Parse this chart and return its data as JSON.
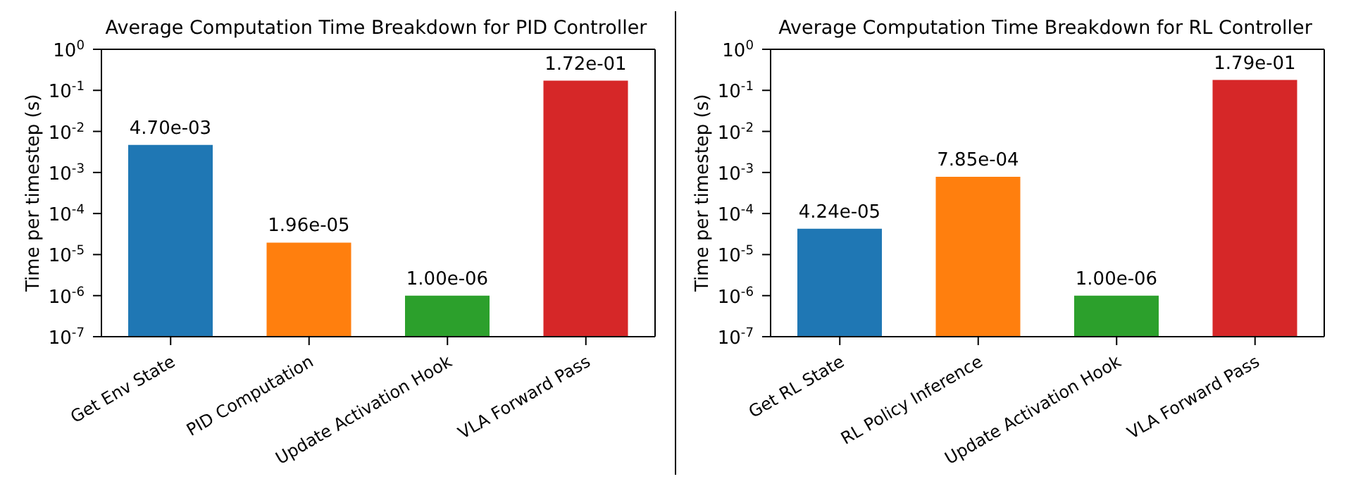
{
  "chart_data": [
    {
      "type": "bar",
      "title": "Average Computation Time Breakdown for PID Controller",
      "ylabel": "Time per timestep (s)",
      "log": true,
      "categories": [
        "Get Env State",
        "PID Computation",
        "Update Activation Hook",
        "VLA Forward Pass"
      ],
      "values": [
        0.0047,
        1.96e-05,
        1e-06,
        0.172
      ],
      "colors": [
        "#1f77b4",
        "#ff7f0e",
        "#2ca02c",
        "#d62728"
      ],
      "value_labels": [
        "4.70e-03",
        "1.96e-05",
        "1.00e-06",
        "1.72e-01"
      ],
      "ylim": [
        1e-07,
        1
      ],
      "yticks": [
        {
          "value": 1e-07,
          "label": "10$^{-7}$"
        },
        {
          "value": 1e-06,
          "label": "10$^{-6}$"
        },
        {
          "value": 1e-05,
          "label": "10$^{-5}$"
        },
        {
          "value": 0.0001,
          "label": "10$^{-4}$"
        },
        {
          "value": 0.001,
          "label": "10$^{-3}$"
        },
        {
          "value": 0.01,
          "label": "10$^{-2}$"
        },
        {
          "value": 0.1,
          "label": "10$^{-1}$"
        },
        {
          "value": 1,
          "label": "10$^{0}$"
        }
      ]
    },
    {
      "type": "bar",
      "title": "Average Computation Time Breakdown for RL Controller",
      "ylabel": "Time per timestep (s)",
      "log": true,
      "categories": [
        "Get RL State",
        "RL Policy Inference",
        "Update Activation Hook",
        "VLA Forward Pass"
      ],
      "values": [
        4.24e-05,
        0.000785,
        1e-06,
        0.179
      ],
      "colors": [
        "#1f77b4",
        "#ff7f0e",
        "#2ca02c",
        "#d62728"
      ],
      "value_labels": [
        "4.24e-05",
        "7.85e-04",
        "1.00e-06",
        "1.79e-01"
      ],
      "ylim": [
        1e-07,
        1
      ],
      "yticks": [
        {
          "value": 1e-07,
          "label": "10$^{-7}$"
        },
        {
          "value": 1e-06,
          "label": "10$^{-6}$"
        },
        {
          "value": 1e-05,
          "label": "10$^{-5}$"
        },
        {
          "value": 0.0001,
          "label": "10$^{-4}$"
        },
        {
          "value": 0.001,
          "label": "10$^{-3}$"
        },
        {
          "value": 0.01,
          "label": "10$^{-2}$"
        },
        {
          "value": 0.1,
          "label": "10$^{-1}$"
        },
        {
          "value": 1,
          "label": "10$^{0}$"
        }
      ]
    }
  ]
}
